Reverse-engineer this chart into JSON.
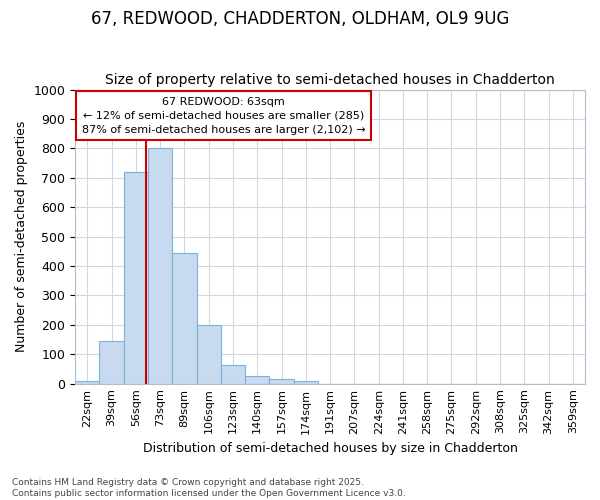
{
  "title_line1": "67, REDWOOD, CHADDERTON, OLDHAM, OL9 9UG",
  "title_line2": "Size of property relative to semi-detached houses in Chadderton",
  "xlabel": "Distribution of semi-detached houses by size in Chadderton",
  "ylabel": "Number of semi-detached properties",
  "categories": [
    "22sqm",
    "39sqm",
    "56sqm",
    "73sqm",
    "89sqm",
    "106sqm",
    "123sqm",
    "140sqm",
    "157sqm",
    "174sqm",
    "191sqm",
    "207sqm",
    "224sqm",
    "241sqm",
    "258sqm",
    "275sqm",
    "292sqm",
    "308sqm",
    "325sqm",
    "342sqm",
    "359sqm"
  ],
  "values": [
    8,
    145,
    720,
    800,
    445,
    200,
    65,
    27,
    15,
    10,
    0,
    0,
    0,
    0,
    0,
    0,
    0,
    0,
    0,
    0,
    0
  ],
  "bar_color": "#c8daf0",
  "bar_edge_color": "#7fb0d8",
  "highlight_color": "#cc0000",
  "annotation_line1": "67 REDWOOD: 63sqm",
  "annotation_line2": "← 12% of semi-detached houses are smaller (285)",
  "annotation_line3": "87% of semi-detached houses are larger (2,102) →",
  "annotation_box_color": "#cc0000",
  "ylim": [
    0,
    1000
  ],
  "yticks": [
    0,
    100,
    200,
    300,
    400,
    500,
    600,
    700,
    800,
    900,
    1000
  ],
  "sqm_values": [
    22,
    39,
    56,
    73,
    89,
    106,
    123,
    140,
    157,
    174,
    191,
    207,
    224,
    241,
    258,
    275,
    292,
    308,
    325,
    342,
    359
  ],
  "property_sqm": 63,
  "bg_color": "#ffffff",
  "grid_color": "#d0d8e8",
  "title_fontsize": 12,
  "subtitle_fontsize": 10,
  "footer_line1": "Contains HM Land Registry data © Crown copyright and database right 2025.",
  "footer_line2": "Contains public sector information licensed under the Open Government Licence v3.0."
}
